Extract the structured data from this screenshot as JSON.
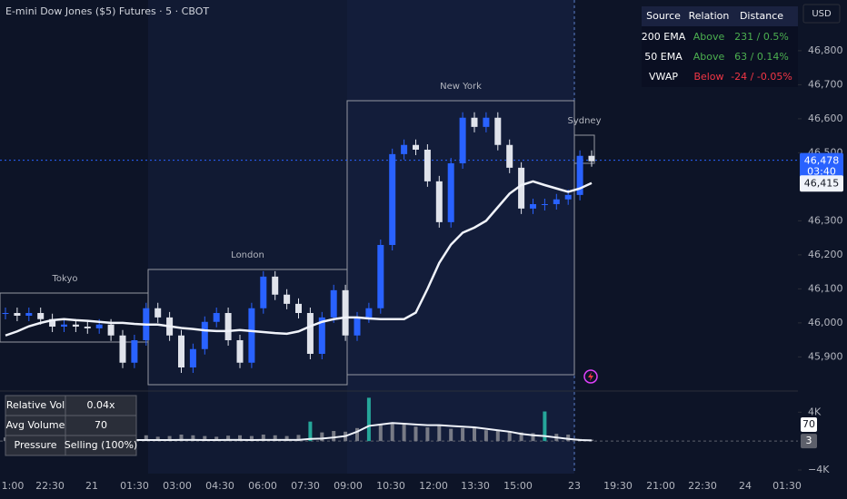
{
  "chart_data": {
    "type": "candlestick",
    "title": "E-mini Dow Jones ($5) Futures · 5 · CBOT",
    "currency": "USD",
    "ylim": [
      45797,
      46949
    ],
    "yticks": [
      {
        "value": 45900,
        "label": "45,900"
      },
      {
        "value": 46000,
        "label": "46,000"
      },
      {
        "value": 46100,
        "label": "46,100"
      },
      {
        "value": 46200,
        "label": "46,200"
      },
      {
        "value": 46300,
        "label": "46,300"
      },
      {
        "value": 46500,
        "label": "46,500"
      },
      {
        "value": 46600,
        "label": "46,600"
      },
      {
        "value": 46700,
        "label": "46,700"
      },
      {
        "value": 46800,
        "label": "46,800"
      }
    ],
    "xtick_labels": [
      "1:00",
      "22:30",
      "21",
      "01:30",
      "03:00",
      "04:30",
      "06:00",
      "07:30",
      "09:00",
      "10:30",
      "12:00",
      "13:30",
      "15:00",
      "23",
      "19:30",
      "21:00",
      "22:30",
      "24",
      "01:30"
    ],
    "sessions": [
      "Tokyo",
      "London",
      "New York",
      "Sydney"
    ],
    "series": [
      {
        "name": "Price",
        "color": "#2962ff",
        "down_color": "#e0e3eb",
        "values": [
          46029,
          46021,
          46029,
          46011,
          45989,
          45995,
          45989,
          45984,
          45995,
          45963,
          45883,
          45949,
          46043,
          46016,
          45963,
          45869,
          45923,
          46003,
          46029,
          45949,
          45883,
          46043,
          46136,
          46083,
          46056,
          46029,
          45909,
          46016,
          46096,
          45963,
          46016,
          46043,
          46229,
          46496,
          46523,
          46509,
          46416,
          46296,
          46469,
          46603,
          46576,
          46603,
          46523,
          46456,
          46336,
          46349,
          46349,
          46363,
          46376,
          46491,
          46475
        ]
      },
      {
        "name": "200 EMA",
        "color": "#f0f3fa",
        "values": [
          45963,
          45975,
          45990,
          46000,
          46008,
          46011,
          46008,
          46006,
          46003,
          46000,
          46000,
          45997,
          45995,
          45995,
          45990,
          45985,
          45982,
          45978,
          45976,
          45976,
          45979,
          45976,
          45973,
          45970,
          45968,
          45975,
          45990,
          46003,
          46011,
          46016,
          46016,
          46013,
          46011,
          46011,
          46011,
          46030,
          46100,
          46176,
          46230,
          46265,
          46280,
          46300,
          46340,
          46380,
          46405,
          46416,
          46405,
          46395,
          46385,
          46395,
          46411
        ]
      }
    ],
    "last_price": {
      "value": 46478,
      "label": "46,478"
    },
    "countdown": "03:40",
    "ema_price": {
      "value": 46415,
      "label": "46,415"
    },
    "indicator_table": {
      "columns": [
        "Source",
        "Relation",
        "Distance"
      ],
      "rows": [
        [
          "200 EMA",
          "Above",
          "231 / 0.5%"
        ],
        [
          "50 EMA",
          "Above",
          "63 / 0.14%"
        ],
        [
          "VWAP",
          "Below",
          "-24 / -0.05%"
        ]
      ]
    },
    "volume_pane": {
      "ylim": [
        -4500,
        6300
      ],
      "yticks": [
        {
          "value": 4000,
          "label": "4K"
        },
        {
          "value": -4000,
          "label": "−4K"
        }
      ],
      "markers": [
        70,
        3
      ],
      "series": [
        {
          "color": "#787b86",
          "spike_color": "#26a69a",
          "values": [
            500,
            450,
            600,
            400,
            700,
            500,
            450,
            600,
            550,
            650,
            900,
            700,
            800,
            600,
            700,
            900,
            800,
            700,
            600,
            750,
            800,
            700,
            900,
            800,
            700,
            850,
            2700,
            1200,
            1400,
            1300,
            1800,
            6000,
            2200,
            2400,
            2300,
            2000,
            1900,
            2100,
            1700,
            1800,
            1900,
            1500,
            1400,
            1300,
            1200,
            1100,
            4100,
            1000,
            900,
            300,
            200
          ]
        },
        {
          "color": "#f0f3fa",
          "values": [
            100,
            100,
            120,
            100,
            110,
            120,
            100,
            110,
            120,
            130,
            150,
            140,
            150,
            140,
            150,
            160,
            160,
            150,
            150,
            160,
            160,
            150,
            170,
            160,
            160,
            170,
            300,
            350,
            500,
            700,
            1300,
            2100,
            2300,
            2500,
            2400,
            2300,
            2200,
            2200,
            2100,
            2000,
            1900,
            1700,
            1500,
            1300,
            1000,
            800,
            700,
            500,
            300,
            150,
            100
          ]
        }
      ]
    },
    "volume_table": {
      "rows": [
        [
          "Relative Vol",
          "0.04x"
        ],
        [
          "Avg Volume",
          70
        ],
        [
          "Pressure",
          "Selling (100%)"
        ]
      ]
    }
  }
}
